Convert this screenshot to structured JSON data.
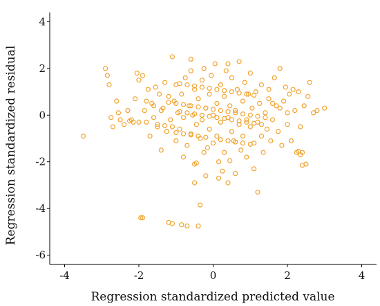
{
  "chart_data": {
    "type": "scatter",
    "title": "",
    "xlabel": "Regression standardized predicted value",
    "ylabel": "Regression standardized residual",
    "xlim": [
      -4.4,
      4.4
    ],
    "ylim": [
      -6.4,
      4.4
    ],
    "xticks": [
      -4,
      -2,
      0,
      2,
      4
    ],
    "yticks": [
      4,
      2,
      0,
      -2,
      -4,
      -6
    ],
    "grid": false,
    "legend": "none",
    "marker_color": "#f2a32e",
    "series": [
      {
        "marker": "hollow-circle",
        "points": [
          [
            -3.5,
            -0.9
          ],
          [
            -2.9,
            2.0
          ],
          [
            -2.85,
            1.7
          ],
          [
            -2.8,
            1.3
          ],
          [
            -2.75,
            -0.1
          ],
          [
            -2.7,
            -0.5
          ],
          [
            -2.6,
            0.6
          ],
          [
            -2.55,
            0.1
          ],
          [
            -2.4,
            -0.4
          ],
          [
            -2.3,
            0.2
          ],
          [
            -2.2,
            -0.2
          ],
          [
            -2.1,
            0.7
          ],
          [
            -2.05,
            1.8
          ],
          [
            -2.0,
            1.5
          ],
          [
            -1.95,
            -4.4
          ],
          [
            -1.9,
            -4.4
          ],
          [
            -1.9,
            1.7
          ],
          [
            -1.85,
            0.2
          ],
          [
            -1.8,
            -0.3
          ],
          [
            -1.75,
            1.1
          ],
          [
            -1.7,
            -0.9
          ],
          [
            -1.65,
            0.5
          ],
          [
            -1.6,
            -0.1
          ],
          [
            -1.55,
            1.2
          ],
          [
            -1.5,
            -0.4
          ],
          [
            -1.45,
            0.9
          ],
          [
            -1.4,
            -1.5
          ],
          [
            -1.35,
            0.3
          ],
          [
            -1.3,
            1.4
          ],
          [
            -1.25,
            -0.7
          ],
          [
            -1.2,
            0.8
          ],
          [
            -1.2,
            -4.6
          ],
          [
            -1.15,
            -0.2
          ],
          [
            -1.1,
            -4.65
          ],
          [
            -1.1,
            2.5
          ],
          [
            -1.05,
            0.6
          ],
          [
            -1.0,
            -1.1
          ],
          [
            -1.0,
            1.3
          ],
          [
            -0.95,
            0.1
          ],
          [
            -0.9,
            -0.6
          ],
          [
            -0.85,
            -4.7
          ],
          [
            -0.85,
            0.9
          ],
          [
            -0.8,
            -1.8
          ],
          [
            -0.8,
            -0.1
          ],
          [
            -0.75,
            1.6
          ],
          [
            -0.7,
            -1.3
          ],
          [
            -0.7,
            -4.75
          ],
          [
            -0.65,
            0.4
          ],
          [
            -0.6,
            -0.8
          ],
          [
            -0.6,
            1.9
          ],
          [
            -0.55,
            0.0
          ],
          [
            -0.5,
            -2.1
          ],
          [
            -0.5,
            1.1
          ],
          [
            -0.45,
            -0.4
          ],
          [
            -0.4,
            -4.75
          ],
          [
            -0.4,
            0.7
          ],
          [
            -0.35,
            -1.0
          ],
          [
            -0.3,
            1.5
          ],
          [
            -0.3,
            -0.2
          ],
          [
            -0.25,
            2.0
          ],
          [
            -0.2,
            0.3
          ],
          [
            -0.2,
            -2.6
          ],
          [
            -0.15,
            -1.4
          ],
          [
            -0.1,
            0.9
          ],
          [
            -0.1,
            -0.6
          ],
          [
            -0.05,
            1.7
          ],
          [
            0.0,
            0.0
          ],
          [
            0.0,
            -1.2
          ],
          [
            0.05,
            2.2
          ],
          [
            0.1,
            0.5
          ],
          [
            0.1,
            -0.9
          ],
          [
            0.15,
            -2.0
          ],
          [
            0.2,
            1.3
          ],
          [
            0.2,
            -0.3
          ],
          [
            0.25,
            -2.4
          ],
          [
            0.3,
            0.8
          ],
          [
            0.3,
            -1.6
          ],
          [
            0.35,
            1.9
          ],
          [
            0.4,
            -0.1
          ],
          [
            0.4,
            -2.9
          ],
          [
            0.45,
            0.4
          ],
          [
            0.5,
            -0.7
          ],
          [
            0.5,
            1.6
          ],
          [
            0.55,
            -1.1
          ],
          [
            0.6,
            0.2
          ],
          [
            0.6,
            -2.5
          ],
          [
            0.65,
            1.1
          ],
          [
            0.7,
            -0.4
          ],
          [
            0.7,
            2.3
          ],
          [
            0.75,
            -1.5
          ],
          [
            0.8,
            0.6
          ],
          [
            0.8,
            -0.9
          ],
          [
            0.85,
            1.4
          ],
          [
            0.9,
            -0.2
          ],
          [
            0.9,
            -1.8
          ],
          [
            0.95,
            0.9
          ],
          [
            1.0,
            -0.5
          ],
          [
            1.0,
            1.8
          ],
          [
            1.05,
            0.3
          ],
          [
            1.1,
            -1.2
          ],
          [
            1.1,
            -2.3
          ],
          [
            1.15,
            1.0
          ],
          [
            1.2,
            -0.3
          ],
          [
            1.2,
            -3.3
          ],
          [
            1.25,
            0.5
          ],
          [
            1.3,
            -0.9
          ],
          [
            1.3,
            1.3
          ],
          [
            1.35,
            -1.6
          ],
          [
            1.4,
            0.1
          ],
          [
            1.45,
            -0.6
          ],
          [
            1.5,
            1.1
          ],
          [
            1.5,
            0.7
          ],
          [
            1.55,
            -1.1
          ],
          [
            1.6,
            -0.2
          ],
          [
            1.65,
            1.6
          ],
          [
            1.7,
            0.4
          ],
          [
            1.75,
            -0.7
          ],
          [
            1.8,
            2.0
          ],
          [
            1.85,
            -1.3
          ],
          [
            1.9,
            0.6
          ],
          [
            1.95,
            1.2
          ],
          [
            2.0,
            -0.4
          ],
          [
            2.05,
            0.9
          ],
          [
            2.1,
            -1.1
          ],
          [
            2.15,
            1.1
          ],
          [
            2.2,
            0.2
          ],
          [
            2.25,
            -1.6
          ],
          [
            2.3,
            1.0
          ],
          [
            2.35,
            -0.5
          ],
          [
            2.4,
            -1.6
          ],
          [
            2.45,
            0.4
          ],
          [
            2.5,
            -2.1
          ],
          [
            2.55,
            0.8
          ],
          [
            2.6,
            1.4
          ],
          [
            2.7,
            0.1
          ],
          [
            2.8,
            0.2
          ],
          [
            3.0,
            0.3
          ],
          [
            2.3,
            -1.55
          ],
          [
            2.35,
            -1.7
          ],
          [
            2.4,
            -2.15
          ],
          [
            -2.5,
            -0.2
          ],
          [
            -2.25,
            -0.25
          ],
          [
            -2.15,
            -0.3
          ],
          [
            -2.0,
            -0.3
          ],
          [
            -1.5,
            -0.5
          ],
          [
            -1.3,
            -0.45
          ],
          [
            -1.1,
            -0.5
          ],
          [
            -0.9,
            0.15
          ],
          [
            -0.7,
            0.1
          ],
          [
            -0.5,
            0.05
          ],
          [
            -0.3,
            0.0
          ],
          [
            -0.1,
            -0.05
          ],
          [
            0.1,
            -0.1
          ],
          [
            0.3,
            -0.15
          ],
          [
            0.5,
            -0.2
          ],
          [
            0.7,
            -0.25
          ],
          [
            0.9,
            -0.3
          ],
          [
            1.1,
            -0.35
          ],
          [
            1.3,
            -0.4
          ],
          [
            -1.0,
            -0.75
          ],
          [
            -0.8,
            -0.8
          ],
          [
            -0.6,
            -0.85
          ],
          [
            -0.4,
            -0.9
          ],
          [
            -0.2,
            -0.95
          ],
          [
            0.2,
            -1.05
          ],
          [
            0.4,
            -1.1
          ],
          [
            0.6,
            -1.15
          ],
          [
            0.8,
            -1.2
          ],
          [
            1.0,
            -1.25
          ],
          [
            -1.2,
            0.55
          ],
          [
            -1.0,
            0.5
          ],
          [
            -0.8,
            0.45
          ],
          [
            -0.6,
            0.4
          ],
          [
            -0.4,
            0.35
          ],
          [
            -0.2,
            0.3
          ],
          [
            0.0,
            0.25
          ],
          [
            0.2,
            0.2
          ],
          [
            0.4,
            0.15
          ],
          [
            0.6,
            0.1
          ],
          [
            0.8,
            0.05
          ],
          [
            1.0,
            0.0
          ],
          [
            1.2,
            -0.05
          ],
          [
            1.4,
            -0.1
          ],
          [
            -0.9,
            1.35
          ],
          [
            -0.7,
            1.3
          ],
          [
            -0.5,
            1.25
          ],
          [
            -0.3,
            1.2
          ],
          [
            -0.1,
            1.15
          ],
          [
            0.1,
            1.1
          ],
          [
            0.3,
            1.05
          ],
          [
            0.5,
            1.0
          ],
          [
            0.7,
            0.95
          ],
          [
            0.9,
            0.9
          ],
          [
            1.1,
            0.85
          ],
          [
            -1.4,
            0.2
          ],
          [
            -1.6,
            0.4
          ],
          [
            -1.8,
            0.6
          ],
          [
            1.6,
            0.5
          ],
          [
            1.8,
            0.3
          ],
          [
            2.0,
            0.1
          ],
          [
            -0.6,
            2.4
          ],
          [
            0.4,
            2.2
          ],
          [
            -0.25,
            -1.6
          ],
          [
            0.45,
            -1.95
          ],
          [
            -0.5,
            -2.9
          ],
          [
            -0.35,
            -3.85
          ],
          [
            0.15,
            -2.7
          ],
          [
            -0.45,
            -2.05
          ]
        ]
      }
    ]
  }
}
